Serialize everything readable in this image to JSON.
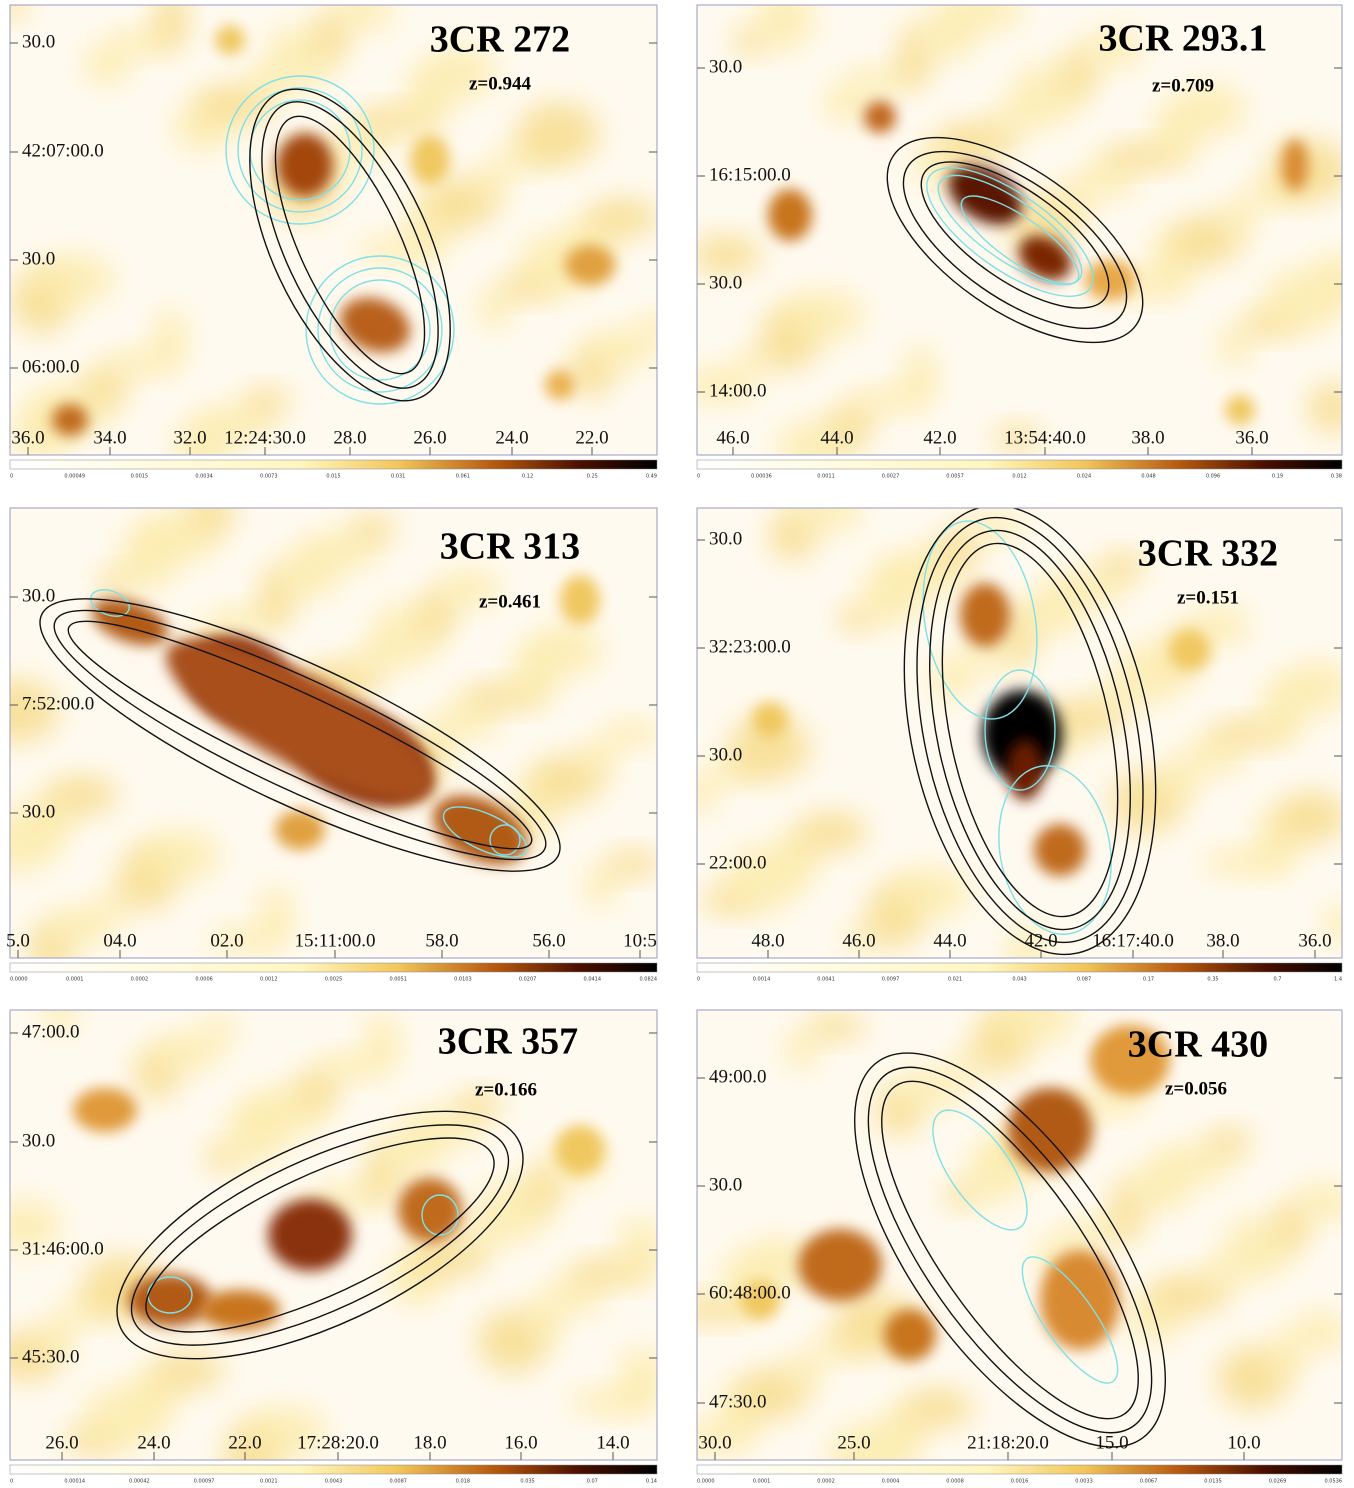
{
  "panels": [
    {
      "title": "3CR 272",
      "redshift": "z=0.944",
      "y_labels": [
        "30.0",
        "42:07:00.0",
        "30.0",
        "06:00.0"
      ],
      "x_labels": [
        "36.0",
        "34.0",
        "32.0",
        "12:24:30.0",
        "28.0",
        "26.0",
        "24.0",
        "22.0"
      ],
      "colorbar_labels": [
        "0",
        "0.00049",
        "0.0015",
        "0.0034",
        "0.0073",
        "0.015",
        "0.031",
        "0.061",
        "0.12",
        "0.25",
        "0.49"
      ]
    },
    {
      "title": "3CR 293.1",
      "redshift": "z=0.709",
      "y_labels": [
        "30.0",
        "16:15:00.0",
        "30.0",
        "14:00.0"
      ],
      "x_labels": [
        "46.0",
        "44.0",
        "42.0",
        "13:54:40.0",
        "38.0",
        "36.0"
      ],
      "colorbar_labels": [
        "0",
        "0.00036",
        "0.0011",
        "0.0027",
        "0.0057",
        "0.012",
        "0.024",
        "0.048",
        "0.096",
        "0.19",
        "0.38"
      ]
    },
    {
      "title": "3CR 313",
      "redshift": "z=0.461",
      "y_labels": [
        "30.0",
        "7:52:00.0",
        "30.0"
      ],
      "x_labels": [
        "5.0",
        "04.0",
        "02.0",
        "15:11:00.0",
        "58.0",
        "56.0",
        "10:5"
      ],
      "colorbar_labels": [
        "0.0000",
        "0.0001",
        "0.0002",
        "0.0006",
        "0.0012",
        "0.0025",
        "0.0051",
        "0.0103",
        "0.0207",
        "0.0414",
        "0.0824"
      ]
    },
    {
      "title": "3CR 332",
      "redshift": "z=0.151",
      "y_labels": [
        "30.0",
        "32:23:00.0",
        "30.0",
        "22:00.0"
      ],
      "x_labels": [
        "48.0",
        "46.0",
        "44.0",
        "42.0",
        "16:17:40.0",
        "38.0",
        "36.0"
      ],
      "colorbar_labels": [
        "0",
        "0.0014",
        "0.0041",
        "0.0097",
        "0.021",
        "0.043",
        "0.087",
        "0.17",
        "0.35",
        "0.7",
        "1.4"
      ]
    },
    {
      "title": "3CR 357",
      "redshift": "z=0.166",
      "y_labels": [
        "47:00.0",
        "30.0",
        "31:46:00.0",
        "45:30.0"
      ],
      "x_labels": [
        "26.0",
        "24.0",
        "22.0",
        "17:28:20.0",
        "18.0",
        "16.0",
        "14.0"
      ],
      "colorbar_labels": [
        "0",
        "0.00014",
        "0.00042",
        "0.00097",
        "0.0021",
        "0.0043",
        "0.0087",
        "0.018",
        "0.035",
        "0.07",
        "0.14"
      ]
    },
    {
      "title": "3CR 430",
      "redshift": "z=0.056",
      "y_labels": [
        "49:00.0",
        "30.0",
        "60:48:00.0",
        "47:30.0"
      ],
      "x_labels": [
        "30.0",
        "25.0",
        "21:18:20.0",
        "15.0",
        "10.0"
      ],
      "colorbar_labels": [
        "0.0000",
        "0.0001",
        "0.0002",
        "0.0004",
        "0.0008",
        "0.0016",
        "0.0033",
        "0.0067",
        "0.0135",
        "0.0269",
        "0.0536"
      ]
    }
  ]
}
